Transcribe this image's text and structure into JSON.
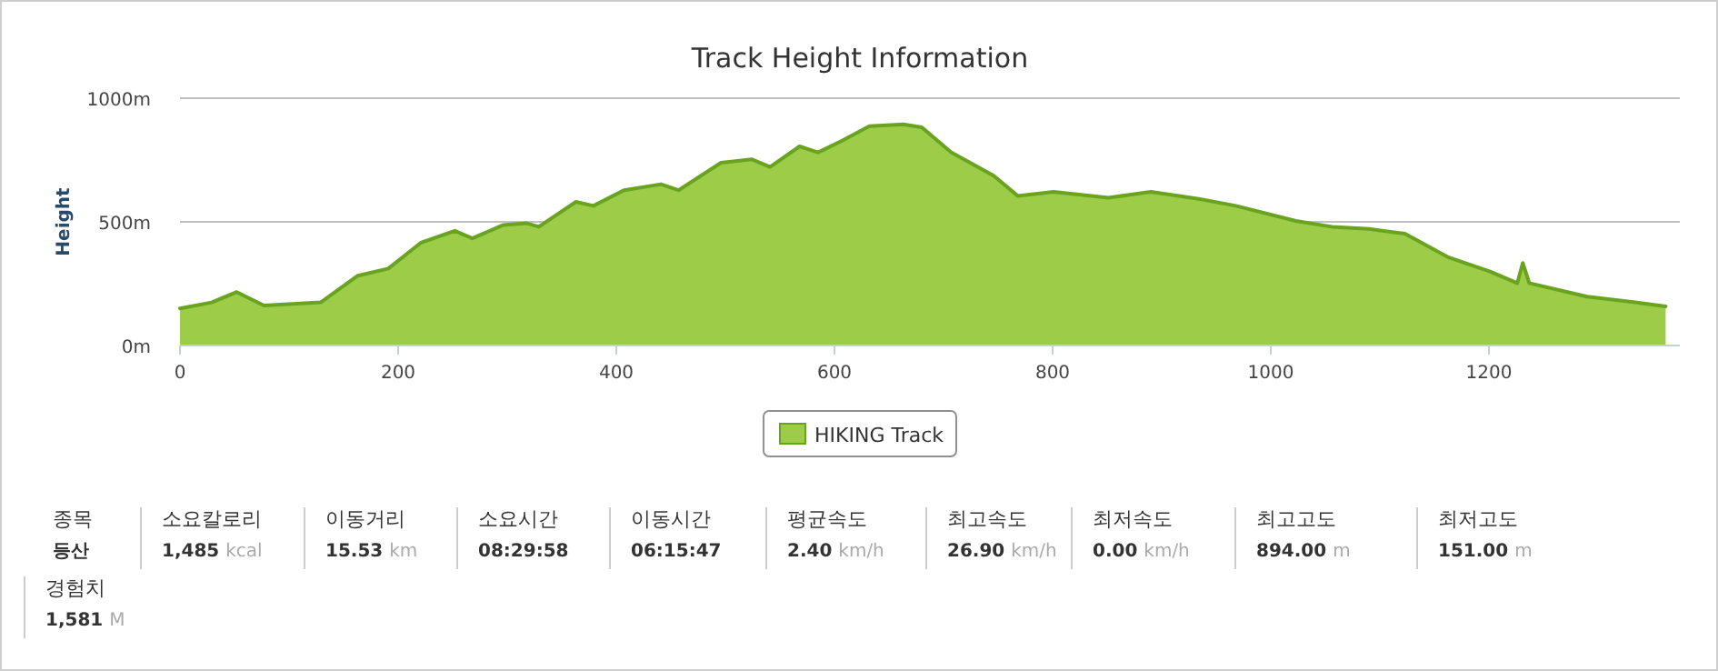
{
  "chart_data": {
    "type": "area",
    "title": "Track Height Information",
    "ylabel": "Height",
    "xlim": [
      0,
      1375
    ],
    "xticks": [
      0,
      200,
      400,
      600,
      800,
      1000,
      1200
    ],
    "ylim": [
      0,
      1000
    ],
    "yticks": [
      {
        "value": 0,
        "label": "0m"
      },
      {
        "value": 500,
        "label": "500m"
      },
      {
        "value": 1000,
        "label": "1000m"
      }
    ],
    "grid": "y",
    "legend": "bottom",
    "series": [
      {
        "name": "HIKING Track",
        "color": "#9ccc48",
        "x": [
          0,
          29,
          52,
          77,
          107,
          129,
          163,
          191,
          221,
          252,
          268,
          296,
          318,
          329,
          363,
          379,
          407,
          441,
          457,
          496,
          524,
          541,
          568,
          585,
          607,
          632,
          652,
          663,
          680,
          707,
          746,
          768,
          801,
          851,
          890,
          934,
          968,
          1023,
          1056,
          1090,
          1123,
          1162,
          1201,
          1226,
          1231,
          1237,
          1290,
          1334,
          1362
        ],
        "values": [
          150,
          174,
          216,
          162,
          169,
          174,
          282,
          311,
          416,
          464,
          433,
          487,
          494,
          480,
          581,
          565,
          628,
          652,
          628,
          739,
          753,
          722,
          805,
          781,
          828,
          887,
          892,
          894,
          882,
          781,
          687,
          605,
          621,
          598,
          621,
          593,
          565,
          504,
          480,
          471,
          452,
          358,
          299,
          252,
          334,
          252,
          198,
          174,
          158
        ]
      }
    ],
    "annotations": [
      "종목",
      "등산",
      "소요칼로리",
      "1,485 kcal",
      "이동거리",
      "15.53 km",
      "소요시간",
      "08:29:58",
      "이동시간",
      "06:15:47",
      "평균속도",
      "2.40 km/h",
      "최고속도",
      "26.90 km/h",
      "최저속도",
      "0.00 km/h",
      "최고고도",
      "894.00 m",
      "최저고도",
      "151.00 m",
      "경험치",
      "1,581 M"
    ]
  }
}
